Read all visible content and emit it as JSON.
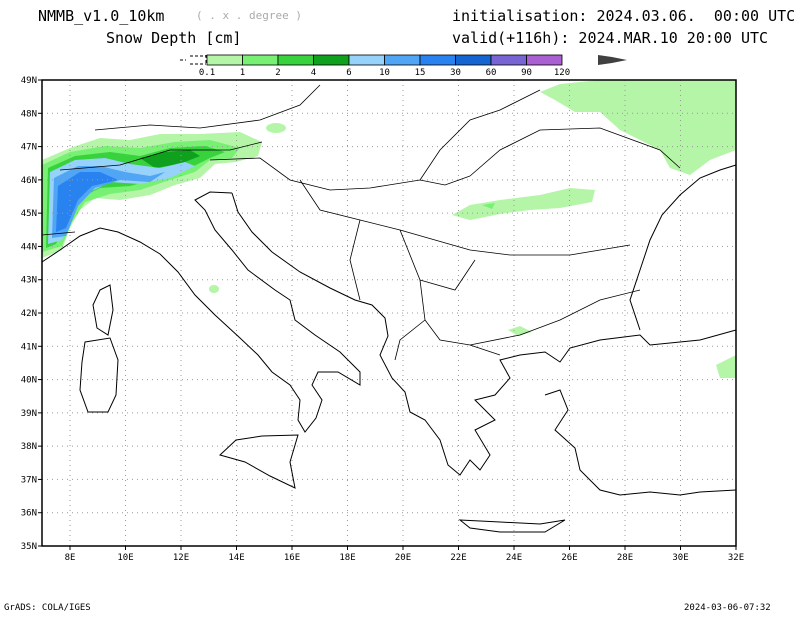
{
  "header": {
    "model": "NMMB_v1.0_10km",
    "grid_note": "( . x . degree )",
    "variable": "Snow Depth [cm]",
    "initialisation": "initialisation: 2024.03.06.  00:00 UTC",
    "valid": "valid(+116h): 2024.MAR.10 20:00 UTC"
  },
  "legend": {
    "labels": [
      "0.1",
      "1",
      "2",
      "4",
      "6",
      "10",
      "15",
      "30",
      "60",
      "90",
      "120"
    ],
    "colors": [
      "#b4f5a8",
      "#78f073",
      "#37d23c",
      "#0fa01e",
      "#96d2fa",
      "#50a5f5",
      "#2882f0",
      "#1464d2",
      "#7864d2",
      "#aa5fd2"
    ],
    "overflow_color": "#404040"
  },
  "map": {
    "lon_labels": [
      "8E",
      "10E",
      "12E",
      "14E",
      "16E",
      "18E",
      "20E",
      "22E",
      "24E",
      "26E",
      "28E",
      "30E",
      "32E"
    ],
    "lat_labels": [
      "49N",
      "48N",
      "47N",
      "46N",
      "45N",
      "44N",
      "43N",
      "42N",
      "41N",
      "40N",
      "39N",
      "38N",
      "37N",
      "36N",
      "35N"
    ]
  },
  "footer": {
    "left": "GrADS: COLA/IGES",
    "right": "2024-03-06-07:32"
  }
}
